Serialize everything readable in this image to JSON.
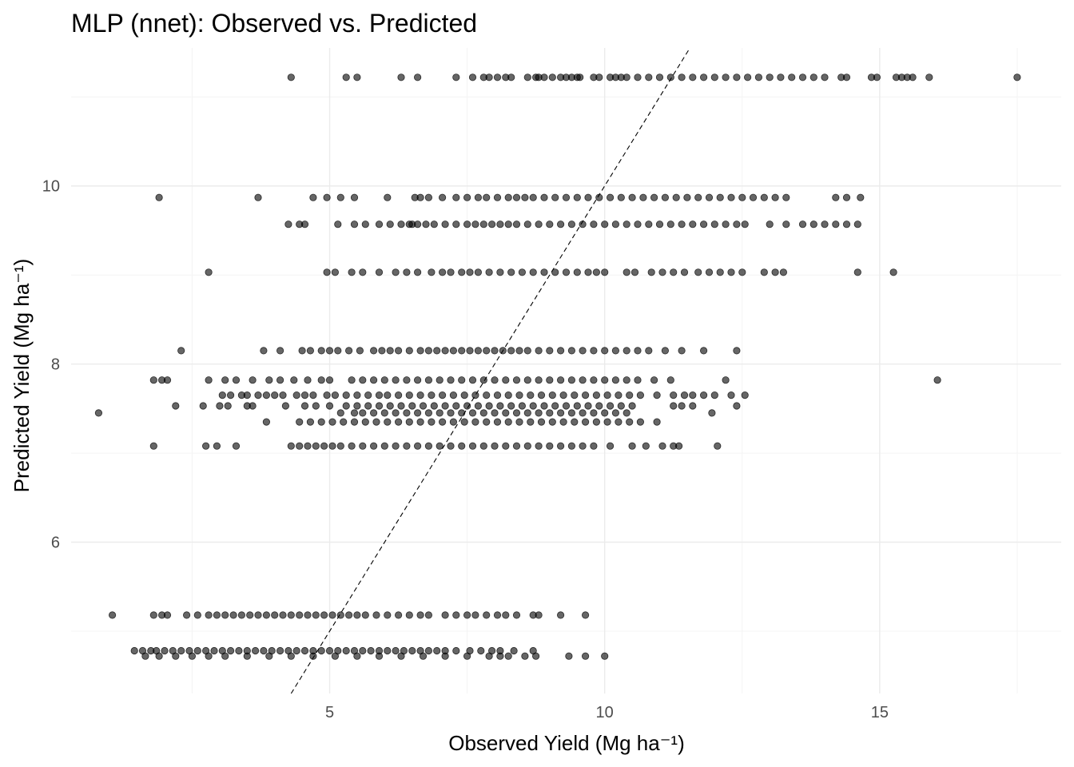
{
  "chart_data": {
    "type": "scatter",
    "title": "MLP (nnet): Observed vs. Predicted",
    "xlabel": "Observed Yield (Mg ha⁻¹)",
    "ylabel": "Predicted Yield (Mg ha⁻¹)",
    "xlim": [
      0.3,
      18.3
    ],
    "ylim": [
      4.3,
      11.55
    ],
    "x_ticks": [
      5,
      10,
      15
    ],
    "y_ticks": [
      6,
      8,
      10
    ],
    "grid": true,
    "legend": "none",
    "point_color": "#000000",
    "point_opacity": 0.6,
    "reference_line": {
      "slope": 1,
      "intercept": 0,
      "style": "dashed",
      "color": "#000000"
    },
    "rows": [
      {
        "y": 11.22,
        "x": [
          4.3,
          5.3,
          5.5,
          6.3,
          6.6,
          7.3,
          7.6,
          7.8,
          7.9,
          8.05,
          8.2,
          8.3,
          8.6,
          8.75,
          8.8,
          8.9,
          9.05,
          9.2,
          9.3,
          9.4,
          9.5,
          9.55,
          9.8,
          9.9,
          10.1,
          10.2,
          10.3,
          10.4,
          10.6,
          10.8,
          11.0,
          11.2,
          11.4,
          11.6,
          11.8,
          12.0,
          12.2,
          12.4,
          12.6,
          12.8,
          13.0,
          13.2,
          13.4,
          13.6,
          13.8,
          14.0,
          14.3,
          14.4,
          14.85,
          14.95,
          15.3,
          15.4,
          15.5,
          15.6,
          15.9,
          17.5
        ]
      },
      {
        "y": 9.87,
        "x": [
          1.9,
          3.7,
          4.7,
          4.95,
          5.2,
          5.45,
          6.05,
          6.55,
          6.65,
          6.8,
          7.05,
          7.3,
          7.5,
          7.7,
          7.85,
          8.05,
          8.25,
          8.4,
          8.55,
          8.7,
          8.9,
          9.1,
          9.3,
          9.5,
          9.7,
          9.9,
          10.1,
          10.3,
          10.5,
          10.7,
          10.9,
          11.1,
          11.3,
          11.5,
          11.7,
          11.9,
          12.1,
          12.3,
          12.5,
          12.7,
          12.9,
          13.1,
          13.3,
          14.2,
          14.4,
          14.65
        ]
      },
      {
        "y": 9.57,
        "x": [
          4.25,
          4.45,
          4.55,
          5.15,
          5.45,
          5.65,
          5.9,
          6.1,
          6.3,
          6.45,
          6.5,
          6.6,
          6.75,
          6.9,
          7.1,
          7.3,
          7.5,
          7.65,
          7.8,
          7.95,
          8.1,
          8.25,
          8.4,
          8.6,
          8.8,
          9.0,
          9.2,
          9.4,
          9.6,
          9.8,
          10.0,
          10.2,
          10.4,
          10.6,
          10.8,
          11.0,
          11.2,
          11.4,
          11.6,
          11.8,
          12.0,
          12.2,
          12.4,
          12.55,
          13.0,
          13.3,
          13.6,
          13.8,
          14.0,
          14.2,
          14.4,
          14.6
        ]
      },
      {
        "y": 9.03,
        "x": [
          2.8,
          4.95,
          5.1,
          5.4,
          5.6,
          5.9,
          6.2,
          6.4,
          6.6,
          6.85,
          7.05,
          7.2,
          7.4,
          7.55,
          7.7,
          7.9,
          8.1,
          8.3,
          8.5,
          8.7,
          8.9,
          9.1,
          9.3,
          9.5,
          9.7,
          9.85,
          10.0,
          10.4,
          10.55,
          10.85,
          11.05,
          11.25,
          11.45,
          11.7,
          11.9,
          12.1,
          12.3,
          12.5,
          12.9,
          13.1,
          13.25,
          14.6,
          15.25
        ]
      },
      {
        "y": 8.15,
        "x": [
          2.3,
          3.8,
          4.1,
          4.5,
          4.65,
          4.85,
          5.0,
          5.15,
          5.35,
          5.55,
          5.8,
          5.95,
          6.1,
          6.25,
          6.45,
          6.65,
          6.8,
          6.95,
          7.1,
          7.25,
          7.4,
          7.55,
          7.7,
          7.85,
          8.0,
          8.15,
          8.3,
          8.45,
          8.6,
          8.8,
          9.0,
          9.2,
          9.4,
          9.6,
          9.8,
          10.0,
          10.2,
          10.4,
          10.6,
          10.8,
          11.1,
          11.4,
          11.8,
          12.4
        ]
      },
      {
        "y": 7.82,
        "x": [
          1.8,
          1.95,
          2.05,
          2.8,
          3.1,
          3.3,
          3.6,
          3.9,
          4.1,
          4.35,
          4.6,
          4.85,
          5.0,
          5.4,
          5.6,
          5.8,
          6.0,
          6.2,
          6.4,
          6.6,
          6.8,
          7.0,
          7.2,
          7.4,
          7.6,
          7.8,
          8.0,
          8.2,
          8.4,
          8.6,
          8.8,
          9.0,
          9.2,
          9.4,
          9.6,
          9.8,
          10.0,
          10.2,
          10.4,
          10.6,
          10.9,
          11.2,
          12.2,
          16.05
        ]
      },
      {
        "y": 7.65,
        "x": [
          3.05,
          3.2,
          3.4,
          3.5,
          3.7,
          3.85,
          4.0,
          4.15,
          4.4,
          4.55,
          4.7,
          4.95,
          5.1,
          5.3,
          5.5,
          5.7,
          5.9,
          6.05,
          6.25,
          6.45,
          6.65,
          6.85,
          7.05,
          7.25,
          7.45,
          7.65,
          7.85,
          8.05,
          8.25,
          8.45,
          8.65,
          8.85,
          9.05,
          9.25,
          9.45,
          9.65,
          9.85,
          10.05,
          10.25,
          10.45,
          10.65,
          10.95,
          11.25,
          11.45,
          11.6,
          11.8,
          12.0,
          12.3,
          12.55
        ]
      },
      {
        "y": 7.53,
        "x": [
          2.2,
          2.7,
          3.0,
          3.15,
          3.5,
          3.6,
          4.2,
          4.55,
          4.75,
          5.0,
          5.3,
          5.5,
          5.7,
          5.9,
          6.1,
          6.3,
          6.5,
          6.7,
          6.9,
          7.1,
          7.3,
          7.5,
          7.7,
          7.9,
          8.1,
          8.3,
          8.5,
          8.7,
          8.9,
          9.1,
          9.3,
          9.5,
          9.7,
          9.9,
          10.1,
          10.3,
          10.5,
          11.25,
          11.4,
          11.6,
          12.4
        ]
      },
      {
        "y": 7.45,
        "x": [
          0.8,
          5.2,
          5.45,
          5.6,
          5.8,
          6.0,
          6.2,
          6.4,
          6.6,
          6.8,
          7.0,
          7.2,
          7.4,
          7.6,
          7.8,
          8.0,
          8.2,
          8.4,
          8.6,
          8.8,
          9.0,
          9.2,
          9.4,
          9.6,
          9.8,
          10.0,
          10.2,
          10.4,
          11.95
        ]
      },
      {
        "y": 7.35,
        "x": [
          3.85,
          4.45,
          4.65,
          4.85,
          5.05,
          5.25,
          5.45,
          5.65,
          5.85,
          6.05,
          6.25,
          6.45,
          6.65,
          6.85,
          7.05,
          7.25,
          7.45,
          7.65,
          7.85,
          8.05,
          8.25,
          8.45,
          8.65,
          8.85,
          9.05,
          9.25,
          9.45,
          9.65,
          9.85,
          10.05,
          10.25,
          10.45,
          10.65,
          10.95
        ]
      },
      {
        "y": 7.08,
        "x": [
          1.8,
          2.75,
          2.95,
          3.3,
          4.3,
          4.45,
          4.6,
          4.75,
          4.9,
          5.05,
          5.2,
          5.4,
          5.6,
          5.8,
          6.0,
          6.2,
          6.4,
          6.6,
          6.8,
          7.0,
          7.2,
          7.4,
          7.6,
          7.8,
          8.0,
          8.2,
          8.4,
          8.6,
          8.8,
          9.0,
          9.2,
          9.4,
          9.6,
          9.8,
          10.1,
          10.5,
          10.75,
          11.05,
          11.25,
          11.35,
          12.05
        ]
      },
      {
        "y": 5.18,
        "x": [
          1.05,
          1.8,
          1.95,
          2.05,
          2.4,
          2.6,
          2.8,
          2.95,
          3.1,
          3.25,
          3.4,
          3.55,
          3.7,
          3.85,
          4.0,
          4.15,
          4.3,
          4.45,
          4.6,
          4.75,
          4.9,
          5.05,
          5.2,
          5.35,
          5.5,
          5.65,
          5.85,
          6.05,
          6.25,
          6.45,
          6.65,
          6.8,
          7.1,
          7.3,
          7.5,
          7.65,
          7.85,
          8.05,
          8.2,
          8.4,
          8.7,
          8.8,
          9.2,
          9.65
        ]
      },
      {
        "y": 4.78,
        "x": [
          1.45,
          1.6,
          1.75,
          1.85,
          2.0,
          2.15,
          2.3,
          2.45,
          2.6,
          2.75,
          2.9,
          3.05,
          3.2,
          3.35,
          3.5,
          3.65,
          3.8,
          3.95,
          4.1,
          4.25,
          4.4,
          4.55,
          4.7,
          4.85,
          5.0,
          5.15,
          5.3,
          5.45,
          5.6,
          5.75,
          5.9,
          6.05,
          6.2,
          6.35,
          6.5,
          6.65,
          6.8,
          6.95,
          7.1,
          7.3,
          7.55,
          7.75,
          7.95,
          8.1,
          8.35,
          8.7
        ]
      },
      {
        "y": 4.72,
        "x": [
          1.65,
          1.9,
          2.2,
          2.5,
          2.8,
          3.1,
          3.5,
          3.9,
          4.3,
          4.7,
          5.1,
          5.5,
          5.9,
          6.3,
          6.7,
          7.1,
          7.5,
          7.9,
          8.1,
          8.25,
          8.55,
          8.75,
          9.35,
          9.65,
          10.0
        ]
      }
    ]
  }
}
